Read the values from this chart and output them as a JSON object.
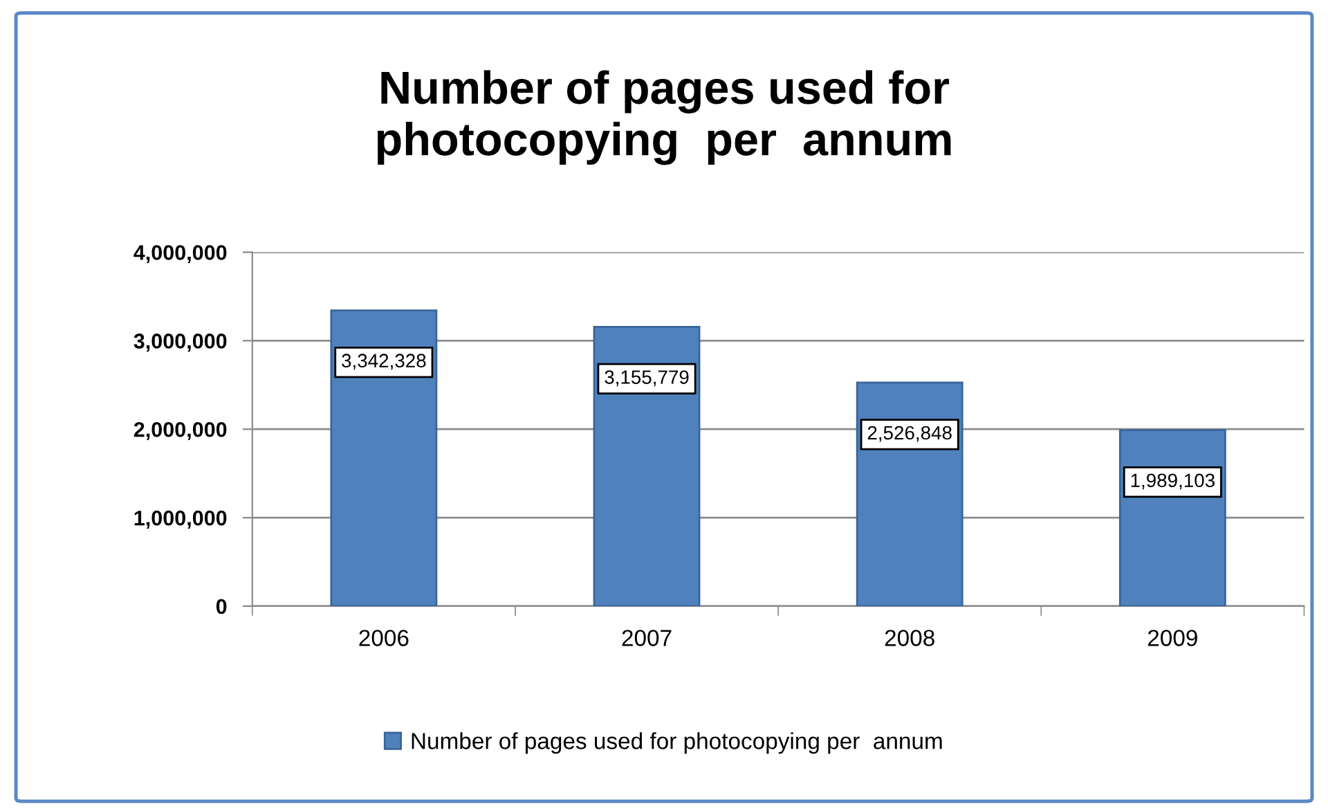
{
  "chart_data": {
    "type": "bar",
    "title": "Number of pages used for\nphotocopying  per  annum",
    "categories": [
      "2006",
      "2007",
      "2008",
      "2009"
    ],
    "series": [
      {
        "name": "Number of pages used for photocopying per  annum",
        "color": "#4f81bd",
        "values": [
          3342328,
          3155779,
          2526848,
          1989103
        ],
        "value_labels": [
          "3,342,328",
          "3,155,779",
          "2,526,848",
          "1,989,103"
        ]
      }
    ],
    "ylim": [
      0,
      4000000
    ],
    "yticks": [
      {
        "value": 0,
        "label": "0"
      },
      {
        "value": 1000000,
        "label": "1,000,000"
      },
      {
        "value": 2000000,
        "label": "2,000,000"
      },
      {
        "value": 3000000,
        "label": "3,000,000"
      },
      {
        "value": 4000000,
        "label": "4,000,000"
      }
    ],
    "grid": "y",
    "legend": "bottom"
  }
}
